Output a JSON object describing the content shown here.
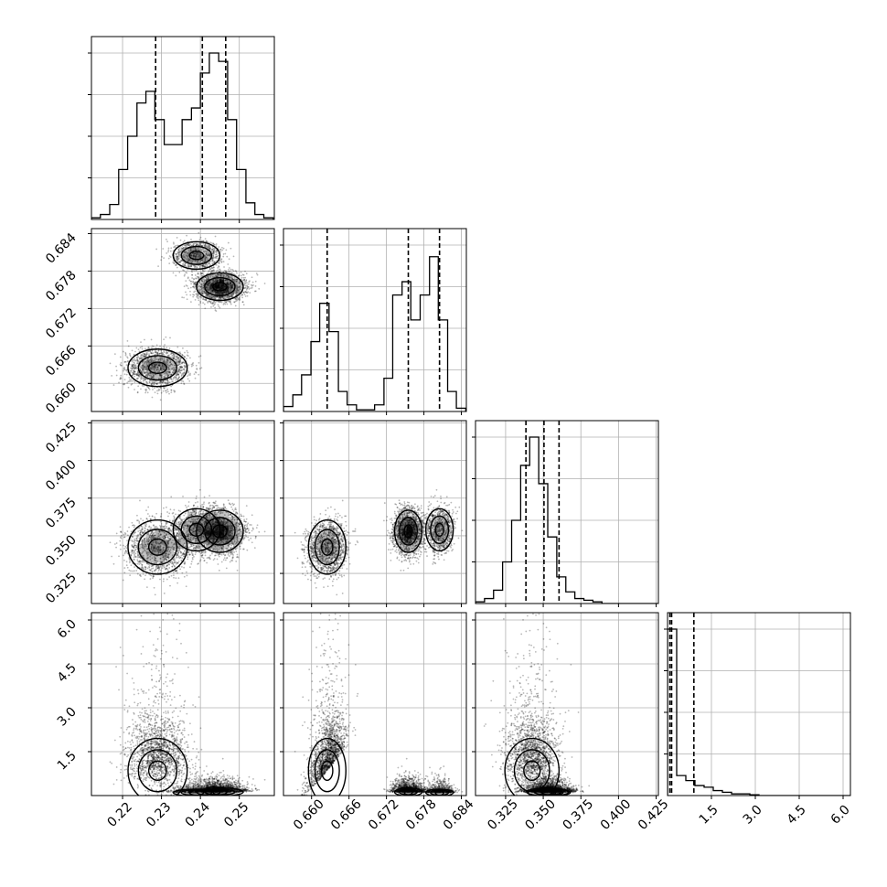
{
  "chart_data": {
    "type": "corner",
    "title": "",
    "grid": true,
    "colors": {
      "frame": "#000000",
      "grid": "#b0b0b0",
      "points": "#000000",
      "hist": "#000000",
      "quantile": "#000000"
    },
    "parameters": [
      {
        "index": 0,
        "xlim": [
          0.212,
          0.259
        ],
        "ticks": [
          "0.22",
          "0.23",
          "0.24",
          "0.25"
        ],
        "tick_values": [
          0.22,
          0.23,
          0.24,
          0.25
        ],
        "quantiles": [
          0.2285,
          0.2405,
          0.2465
        ]
      },
      {
        "index": 1,
        "xlim": [
          0.6555,
          0.6848
        ],
        "ticks": [
          "0.660",
          "0.666",
          "0.672",
          "0.678",
          "0.684"
        ],
        "tick_values": [
          0.66,
          0.666,
          0.672,
          0.678,
          0.684
        ],
        "quantiles": [
          0.6625,
          0.6755,
          0.6805
        ]
      },
      {
        "index": 2,
        "xlim": [
          0.305,
          0.4265
        ],
        "ticks": [
          "0.325",
          "0.350",
          "0.375",
          "0.400",
          "0.425"
        ],
        "tick_values": [
          0.325,
          0.35,
          0.375,
          0.4,
          0.425
        ],
        "quantiles": [
          0.3385,
          0.3505,
          0.3605
        ]
      },
      {
        "index": 3,
        "xlim": [
          0.0,
          6.25
        ],
        "ticks": [
          "1.5",
          "3.0",
          "4.5",
          "6.0"
        ],
        "tick_values": [
          1.5,
          3.0,
          4.5,
          6.0
        ],
        "quantiles": [
          0.08,
          0.14,
          0.9
        ]
      }
    ],
    "histograms": [
      {
        "param": 0,
        "bin_edges": [
          0.212,
          0.2143,
          0.2167,
          0.219,
          0.2213,
          0.2237,
          0.226,
          0.2283,
          0.2307,
          0.233,
          0.2353,
          0.2377,
          0.24,
          0.2423,
          0.2447,
          0.247,
          0.2493,
          0.2517,
          0.254,
          0.2563,
          0.2587
        ],
        "counts": [
          0.01,
          0.03,
          0.09,
          0.3,
          0.5,
          0.7,
          0.77,
          0.6,
          0.45,
          0.45,
          0.6,
          0.67,
          0.88,
          1.0,
          0.95,
          0.6,
          0.3,
          0.1,
          0.03,
          0.01
        ]
      },
      {
        "param": 1,
        "bin_edges": [
          0.6555,
          0.657,
          0.6584,
          0.6599,
          0.6613,
          0.6628,
          0.6643,
          0.6657,
          0.6672,
          0.6686,
          0.6701,
          0.6716,
          0.673,
          0.6745,
          0.6759,
          0.6774,
          0.6789,
          0.6803,
          0.6818,
          0.6832,
          0.6847
        ],
        "counts": [
          0.03,
          0.1,
          0.22,
          0.42,
          0.65,
          0.48,
          0.12,
          0.04,
          0.01,
          0.01,
          0.04,
          0.2,
          0.7,
          0.78,
          0.55,
          0.7,
          0.93,
          0.55,
          0.12,
          0.02
        ]
      },
      {
        "param": 2,
        "bin_edges": [
          0.305,
          0.311,
          0.317,
          0.323,
          0.329,
          0.335,
          0.341,
          0.347,
          0.353,
          0.359,
          0.365,
          0.371,
          0.377,
          0.383,
          0.389,
          0.395,
          0.401,
          0.407,
          0.413,
          0.419,
          0.4265
        ],
        "counts": [
          0.01,
          0.03,
          0.08,
          0.25,
          0.5,
          0.83,
          1.0,
          0.72,
          0.4,
          0.16,
          0.07,
          0.03,
          0.02,
          0.01,
          0.0,
          0.0,
          0.0,
          0.0,
          0.0,
          0.0
        ]
      },
      {
        "param": 3,
        "bin_edges": [
          0.0,
          0.3125,
          0.625,
          0.9375,
          1.25,
          1.5625,
          1.875,
          2.1875,
          2.5,
          2.8125,
          3.125,
          3.4375,
          3.75,
          4.0625,
          4.375,
          4.6875,
          5.0,
          5.3125,
          5.625,
          5.9375,
          6.25
        ],
        "counts": [
          1.0,
          0.12,
          0.09,
          0.06,
          0.05,
          0.03,
          0.02,
          0.01,
          0.01,
          0.005,
          0.0,
          0.0,
          0.0,
          0.0,
          0.0,
          0.0,
          0.0,
          0.0,
          0.0,
          0.0
        ]
      }
    ],
    "modes": [
      {
        "weight": 0.32,
        "mean": [
          0.229,
          0.6625,
          0.3425,
          0.85
        ],
        "sd": [
          0.0038,
          0.0015,
          0.009,
          0.55
        ]
      },
      {
        "weight": 0.22,
        "mean": [
          0.239,
          0.6805,
          0.354,
          0.1
        ],
        "sd": [
          0.003,
          0.0011,
          0.007,
          0.06
        ]
      },
      {
        "weight": 0.46,
        "mean": [
          0.245,
          0.6755,
          0.353,
          0.12
        ],
        "sd": [
          0.003,
          0.0011,
          0.007,
          0.07
        ]
      }
    ]
  }
}
